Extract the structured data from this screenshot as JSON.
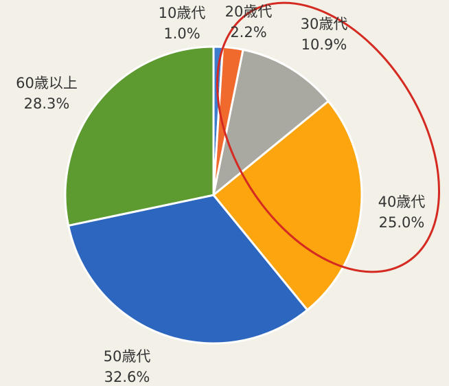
{
  "chart_data": {
    "type": "pie",
    "categories": [
      "10歳代",
      "20歳代",
      "30歳代",
      "40歳代",
      "50歳代",
      "60歳以上"
    ],
    "values": [
      1.0,
      2.2,
      10.9,
      25.0,
      32.6,
      28.3
    ],
    "value_labels": [
      "1.0%",
      "2.2%",
      "10.9%",
      "25.0%",
      "32.6%",
      "28.3%"
    ],
    "colors": [
      "#3d7bcb",
      "#ef6a2c",
      "#a9a9a2",
      "#fca50f",
      "#2d66bf",
      "#5d9a30"
    ]
  }
}
